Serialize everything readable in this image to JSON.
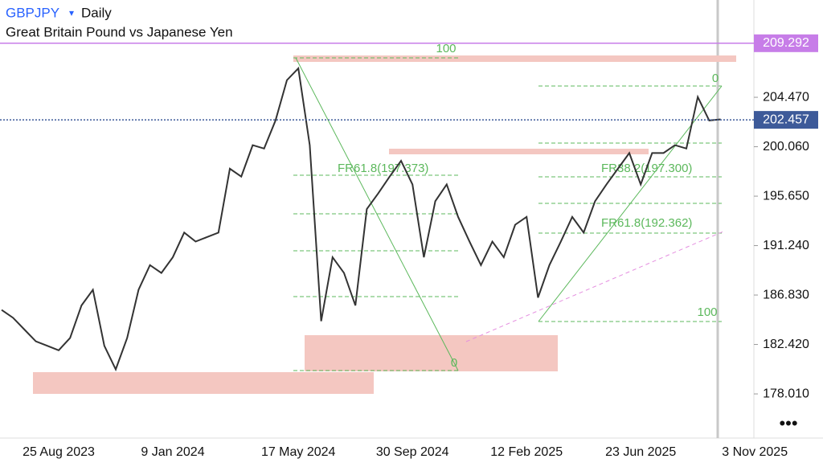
{
  "header": {
    "symbol": "GBPJPY",
    "interval": "Daily",
    "subtitle": "Great Britain Pound vs Japanese Yen",
    "menu": "•••"
  },
  "annotations": {
    "fib_top": "100",
    "fib_zero_right": "0",
    "fr_left": "FR61.8(197.373)",
    "fr_right_upper": "FR38.2(197.300)",
    "fr_right_lower": "FR61.8(192.362)",
    "fib_right_100": "100",
    "fib_zero_mid": "0"
  },
  "chart_data": {
    "type": "line",
    "color": "#333333",
    "categories": [
      null,
      null,
      null,
      null,
      null,
      "25 Aug 2023",
      null,
      null,
      null,
      null,
      null,
      null,
      null,
      null,
      null,
      "9 Jan 2024",
      null,
      null,
      null,
      null,
      null,
      null,
      null,
      null,
      null,
      null,
      "17 May 2024",
      null,
      null,
      null,
      null,
      null,
      null,
      null,
      null,
      null,
      "30 Sep 2024",
      null,
      null,
      null,
      null,
      null,
      null,
      null,
      null,
      null,
      "12 Feb 2025",
      null,
      null,
      null,
      null,
      null,
      null,
      null,
      null,
      null,
      "23 Jun 2025",
      null,
      null,
      null,
      null,
      null,
      null,
      null,
      null,
      null,
      "3 Nov 2025"
    ],
    "values": [
      185.5,
      184.8,
      183.75,
      182.7,
      182.3,
      181.9,
      183.0,
      185.9,
      187.3,
      182.3,
      180.2,
      183.0,
      187.3,
      189.5,
      188.8,
      190.2,
      192.4,
      191.6,
      192.0,
      192.4,
      198.1,
      197.4,
      200.2,
      199.9,
      202.4,
      206.0,
      207.05,
      200.2,
      184.5,
      190.2,
      188.8,
      185.9,
      194.5,
      195.9,
      197.4,
      198.8,
      196.7,
      190.2,
      195.2,
      196.7,
      193.8,
      191.6,
      189.5,
      191.6,
      190.2,
      193.1,
      193.8,
      186.6,
      189.5,
      191.6,
      193.8,
      192.4,
      195.2,
      196.7,
      198.1,
      199.5,
      196.7,
      199.5,
      199.5,
      200.2,
      199.9,
      204.5,
      202.4,
      202.5,
      null,
      null,
      null
    ],
    "ylim": [
      174.07,
      213.15
    ],
    "yticks": [
      {
        "value": 204.47,
        "label": "204.470"
      },
      {
        "value": 200.06,
        "label": "200.060"
      },
      {
        "value": 195.65,
        "label": "195.650"
      },
      {
        "value": 191.24,
        "label": "191.240"
      },
      {
        "value": 186.83,
        "label": "186.830"
      },
      {
        "value": 182.42,
        "label": "182.420"
      },
      {
        "value": 178.01,
        "label": "178.010"
      }
    ],
    "reference_lines": [
      {
        "value": 209.292,
        "color": "#c77de8"
      },
      {
        "value": 202.457,
        "color": "#3d5a99"
      }
    ]
  }
}
